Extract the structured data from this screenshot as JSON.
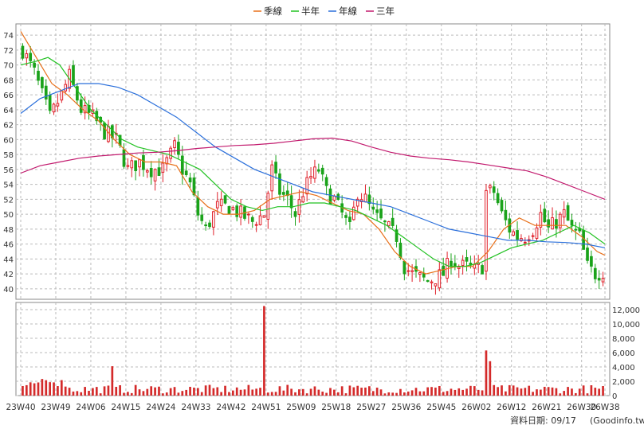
{
  "chart_data": {
    "type": "candlestick",
    "legend": {
      "placement": "top-center",
      "items": [
        {
          "label": "季線",
          "color": "#e8701a"
        },
        {
          "label": "半年",
          "color": "#22c222"
        },
        {
          "label": "年線",
          "color": "#2a6fdb"
        },
        {
          "label": "三年",
          "color": "#c21a6e"
        }
      ]
    },
    "price_axis": {
      "ylim": [
        38.6,
        75.5
      ],
      "ticks": [
        40,
        42,
        44,
        46,
        48,
        50,
        52,
        54,
        56,
        58,
        60,
        62,
        64,
        66,
        68,
        70,
        72,
        74
      ]
    },
    "volume_axis": {
      "ylim": [
        0,
        13000
      ],
      "ticks": [
        0,
        2000,
        4000,
        6000,
        8000,
        10000,
        12000
      ],
      "tick_labels": [
        "0",
        "2,000",
        "4,000",
        "6,000",
        "8,000",
        "10,000",
        "12,000"
      ]
    },
    "x_axis": {
      "count": 150,
      "ticks": [
        {
          "label": "23W40",
          "index": 0
        },
        {
          "label": "23W49",
          "index": 9
        },
        {
          "label": "24W06",
          "index": 18
        },
        {
          "label": "24W15",
          "index": 27
        },
        {
          "label": "24W24",
          "index": 36
        },
        {
          "label": "24W33",
          "index": 45
        },
        {
          "label": "24W42",
          "index": 54
        },
        {
          "label": "24W51",
          "index": 63
        },
        {
          "label": "25W09",
          "index": 72
        },
        {
          "label": "25W18",
          "index": 81
        },
        {
          "label": "25W27",
          "index": 90
        },
        {
          "label": "25W36",
          "index": 99
        },
        {
          "label": "25W45",
          "index": 108
        },
        {
          "label": "26W02",
          "index": 117
        },
        {
          "label": "26W12",
          "index": 126
        },
        {
          "label": "26W21",
          "index": 135
        },
        {
          "label": "26W30",
          "index": 144
        },
        {
          "label": "26W38",
          "index": 150
        }
      ]
    },
    "price_anchors": [
      [
        0,
        72
      ],
      [
        3,
        69
      ],
      [
        5,
        66
      ],
      [
        7,
        63
      ],
      [
        10,
        66
      ],
      [
        12,
        68.5
      ],
      [
        15,
        64
      ],
      [
        18,
        63
      ],
      [
        21,
        61
      ],
      [
        24,
        60
      ],
      [
        27,
        56
      ],
      [
        30,
        57
      ],
      [
        33,
        56
      ],
      [
        36,
        56
      ],
      [
        39,
        59
      ],
      [
        41,
        56
      ],
      [
        43,
        54
      ],
      [
        45,
        50
      ],
      [
        47,
        48
      ],
      [
        50,
        51
      ],
      [
        53,
        51
      ],
      [
        56,
        50
      ],
      [
        59,
        49
      ],
      [
        62,
        50
      ],
      [
        64,
        56
      ],
      [
        66,
        53
      ],
      [
        68,
        52
      ],
      [
        70,
        50
      ],
      [
        72,
        53
      ],
      [
        74,
        55
      ],
      [
        76,
        56
      ],
      [
        78,
        53
      ],
      [
        80,
        52
      ],
      [
        82,
        50
      ],
      [
        84,
        48
      ],
      [
        86,
        53
      ],
      [
        88,
        52
      ],
      [
        90,
        50
      ],
      [
        92,
        49
      ],
      [
        94,
        48
      ],
      [
        96,
        47
      ],
      [
        98,
        43
      ],
      [
        100,
        42
      ],
      [
        102,
        41.5
      ],
      [
        104,
        41
      ],
      [
        106,
        41.5
      ],
      [
        108,
        42
      ],
      [
        110,
        44
      ],
      [
        112,
        43
      ],
      [
        114,
        43
      ],
      [
        116,
        42.5
      ],
      [
        118,
        43
      ],
      [
        119,
        53
      ],
      [
        121,
        53
      ],
      [
        123,
        50
      ],
      [
        125,
        48
      ],
      [
        127,
        47
      ],
      [
        129,
        47
      ],
      [
        131,
        48
      ],
      [
        133,
        50
      ],
      [
        135,
        48
      ],
      [
        137,
        49
      ],
      [
        139,
        50
      ],
      [
        141,
        48
      ],
      [
        143,
        47
      ],
      [
        145,
        43
      ],
      [
        147,
        42
      ],
      [
        150,
        42.5
      ]
    ],
    "volume_spikes": [
      [
        62,
        12500
      ],
      [
        119,
        6300
      ],
      [
        120,
        4800
      ],
      [
        23,
        4100
      ]
    ],
    "series": [
      {
        "name": "季線",
        "color": "#e8701a",
        "points": [
          [
            0,
            74.5
          ],
          [
            4,
            71
          ],
          [
            8,
            67.5
          ],
          [
            12,
            66
          ],
          [
            16,
            64
          ],
          [
            20,
            62.5
          ],
          [
            24,
            60
          ],
          [
            28,
            58
          ],
          [
            32,
            57
          ],
          [
            36,
            57
          ],
          [
            40,
            56.5
          ],
          [
            44,
            53
          ],
          [
            48,
            51
          ],
          [
            52,
            50
          ],
          [
            56,
            50
          ],
          [
            60,
            50.5
          ],
          [
            64,
            52
          ],
          [
            68,
            52.5
          ],
          [
            72,
            53
          ],
          [
            76,
            52.5
          ],
          [
            80,
            51.5
          ],
          [
            84,
            50.5
          ],
          [
            88,
            50
          ],
          [
            92,
            48
          ],
          [
            96,
            45
          ],
          [
            100,
            43
          ],
          [
            104,
            42
          ],
          [
            108,
            42.5
          ],
          [
            112,
            43
          ],
          [
            116,
            43
          ],
          [
            120,
            45
          ],
          [
            124,
            48
          ],
          [
            128,
            49.5
          ],
          [
            132,
            48.5
          ],
          [
            136,
            48.5
          ],
          [
            140,
            48.5
          ],
          [
            144,
            47
          ],
          [
            148,
            45
          ],
          [
            150,
            44.5
          ]
        ]
      },
      {
        "name": "半年",
        "color": "#22c222",
        "points": [
          [
            0,
            70
          ],
          [
            4,
            70.5
          ],
          [
            7,
            71
          ],
          [
            10,
            70
          ],
          [
            14,
            67
          ],
          [
            18,
            64
          ],
          [
            22,
            62
          ],
          [
            26,
            60
          ],
          [
            30,
            59
          ],
          [
            34,
            58.5
          ],
          [
            38,
            58
          ],
          [
            42,
            57
          ],
          [
            46,
            56
          ],
          [
            50,
            54
          ],
          [
            54,
            52
          ],
          [
            58,
            51
          ],
          [
            62,
            50.5
          ],
          [
            66,
            51
          ],
          [
            70,
            51
          ],
          [
            74,
            51.5
          ],
          [
            78,
            51.5
          ],
          [
            82,
            51
          ],
          [
            86,
            50.5
          ],
          [
            90,
            49.5
          ],
          [
            94,
            48.5
          ],
          [
            98,
            47
          ],
          [
            102,
            45.5
          ],
          [
            106,
            44
          ],
          [
            110,
            43
          ],
          [
            114,
            43
          ],
          [
            118,
            43.5
          ],
          [
            122,
            44.5
          ],
          [
            126,
            45.5
          ],
          [
            130,
            46
          ],
          [
            134,
            46.5
          ],
          [
            138,
            47.5
          ],
          [
            142,
            48.5
          ],
          [
            146,
            47.5
          ],
          [
            150,
            46
          ]
        ]
      },
      {
        "name": "年線",
        "color": "#2a6fdb",
        "points": [
          [
            0,
            63.5
          ],
          [
            5,
            65.5
          ],
          [
            10,
            66.5
          ],
          [
            15,
            67.5
          ],
          [
            20,
            67.5
          ],
          [
            25,
            67
          ],
          [
            30,
            66
          ],
          [
            35,
            64.5
          ],
          [
            40,
            63
          ],
          [
            45,
            61
          ],
          [
            50,
            59
          ],
          [
            55,
            57.5
          ],
          [
            60,
            56
          ],
          [
            65,
            55
          ],
          [
            70,
            54
          ],
          [
            75,
            53
          ],
          [
            80,
            52.5
          ],
          [
            85,
            52
          ],
          [
            90,
            51.5
          ],
          [
            95,
            51
          ],
          [
            100,
            50
          ],
          [
            105,
            49
          ],
          [
            110,
            48
          ],
          [
            115,
            47.5
          ],
          [
            120,
            47
          ],
          [
            125,
            46.5
          ],
          [
            130,
            46.5
          ],
          [
            135,
            46.3
          ],
          [
            140,
            46.2
          ],
          [
            145,
            46
          ],
          [
            150,
            45.5
          ]
        ]
      },
      {
        "name": "三年",
        "color": "#c21a6e",
        "points": [
          [
            0,
            55.5
          ],
          [
            5,
            56.5
          ],
          [
            10,
            57
          ],
          [
            15,
            57.5
          ],
          [
            20,
            57.8
          ],
          [
            25,
            58
          ],
          [
            30,
            58.2
          ],
          [
            35,
            58.3
          ],
          [
            40,
            58.5
          ],
          [
            45,
            58.8
          ],
          [
            50,
            59
          ],
          [
            55,
            59.2
          ],
          [
            60,
            59.3
          ],
          [
            65,
            59.5
          ],
          [
            70,
            59.8
          ],
          [
            75,
            60.1
          ],
          [
            80,
            60.2
          ],
          [
            85,
            59.8
          ],
          [
            90,
            59
          ],
          [
            95,
            58.3
          ],
          [
            100,
            57.8
          ],
          [
            105,
            57.5
          ],
          [
            110,
            57.3
          ],
          [
            115,
            57
          ],
          [
            120,
            56.6
          ],
          [
            125,
            56.2
          ],
          [
            130,
            55.8
          ],
          [
            135,
            55
          ],
          [
            140,
            54
          ],
          [
            145,
            53
          ],
          [
            150,
            52
          ]
        ]
      }
    ]
  },
  "footer": {
    "date_label": "資料日期: 09/17",
    "source_label": "(Goodinfo.tw)"
  }
}
